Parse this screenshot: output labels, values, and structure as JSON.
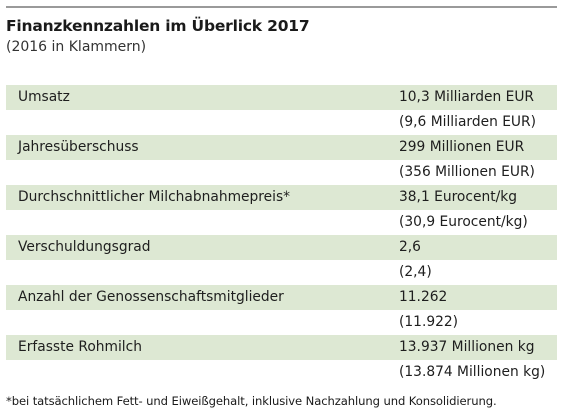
{
  "title": "Finanzkennzahlen im Überlick 2017",
  "subtitle": "(2016 in Klammern)",
  "rows": [
    {
      "label": "Umsatz",
      "value": "10,3 Milliarden EUR",
      "prev": "(9,6 Milliarden EUR)"
    },
    {
      "label": "Jahresüberschuss",
      "value": "299 Millionen EUR",
      "prev": "(356 Millionen EUR)"
    },
    {
      "label": "Durchschnittlicher Milchabnahmepreis*",
      "value": "38,1 Eurocent/kg",
      "prev": "(30,9 Eurocent/kg)"
    },
    {
      "label": "Verschuldungsgrad",
      "value": "2,6",
      "prev": "(2,4)"
    },
    {
      "label": "Anzahl der Genossenschaftsmitglieder",
      "value": "11.262",
      "prev": "(11.922)"
    },
    {
      "label": "Erfasste Rohmilch",
      "value": "13.937 Millionen kg",
      "prev": "(13.874 Millionen kg)"
    }
  ],
  "footnote": "*bei tatsächlichem Fett- und Eiweißgehalt, inklusive Nachzahlung und Konsolidierung.",
  "colors": {
    "row_band": "#dde8d3",
    "rule": "#9a9a9a"
  }
}
